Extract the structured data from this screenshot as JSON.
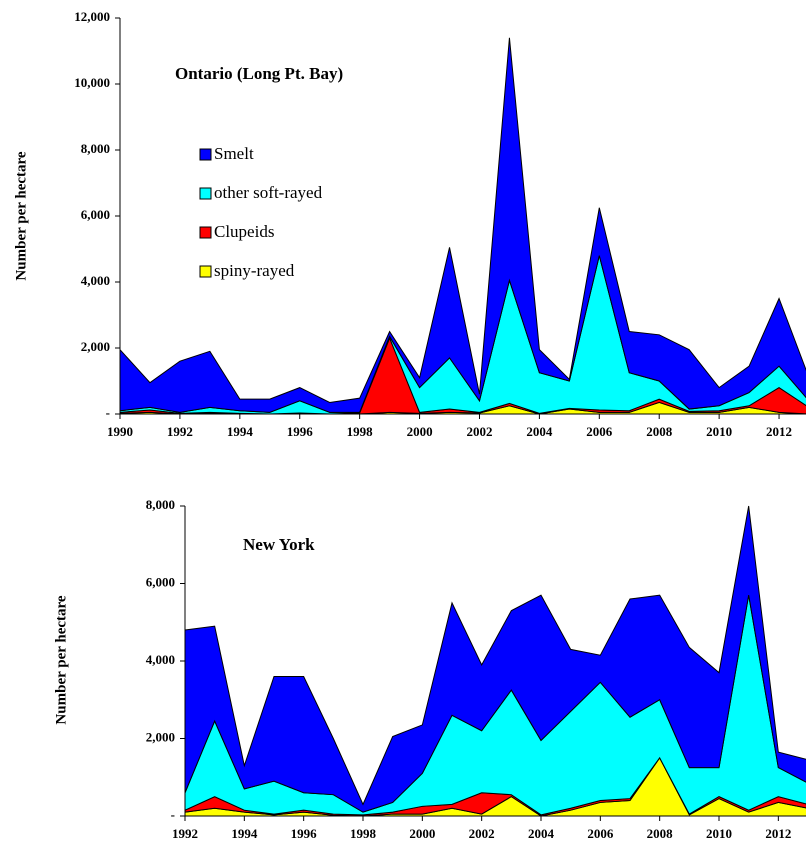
{
  "chart_data": [
    {
      "type": "stacked-area",
      "title": "Ontario (Long Pt. Bay)",
      "y_label": "Number per hectare",
      "x": [
        1990,
        1991,
        1992,
        1993,
        1994,
        1995,
        1996,
        1997,
        1998,
        1999,
        2000,
        2001,
        2002,
        2003,
        2004,
        2005,
        2006,
        2007,
        2008,
        2009,
        2010,
        2011,
        2012,
        2013
      ],
      "series": [
        {
          "name": "Smelt",
          "color": "#0000ff",
          "values": [
            1850,
            750,
            1550,
            1700,
            350,
            400,
            400,
            300,
            430,
            150,
            300,
            3350,
            200,
            7350,
            700,
            50,
            1450,
            1250,
            1400,
            1800,
            550,
            800,
            2050,
            700
          ]
        },
        {
          "name": "other soft-rayed",
          "color": "#00ffff",
          "values": [
            50,
            80,
            30,
            150,
            80,
            50,
            370,
            50,
            20,
            50,
            750,
            1550,
            350,
            3730,
            1230,
            830,
            4680,
            1150,
            550,
            70,
            150,
            400,
            650,
            200
          ]
        },
        {
          "name": "Clupeids",
          "color": "#ff0000",
          "values": [
            30,
            70,
            20,
            30,
            20,
            0,
            10,
            0,
            30,
            2250,
            30,
            100,
            20,
            70,
            20,
            20,
            70,
            50,
            100,
            30,
            50,
            50,
            750,
            200
          ]
        },
        {
          "name": "spiny-rayed",
          "color": "#ffff00",
          "values": [
            20,
            50,
            0,
            20,
            0,
            0,
            20,
            0,
            0,
            50,
            20,
            50,
            30,
            250,
            0,
            150,
            50,
            50,
            350,
            50,
            50,
            200,
            50,
            0
          ]
        }
      ],
      "xlim": [
        1990,
        2013
      ],
      "xticks": [
        1990,
        1992,
        1994,
        1996,
        1998,
        2000,
        2002,
        2004,
        2006,
        2008,
        2010,
        2012
      ],
      "ylim": [
        0,
        12000
      ],
      "yticks": [
        {
          "value": 0,
          "label": "-"
        },
        {
          "value": 2000,
          "label": "2,000"
        },
        {
          "value": 4000,
          "label": "4,000"
        },
        {
          "value": 6000,
          "label": "6,000"
        },
        {
          "value": 8000,
          "label": "8,000"
        },
        {
          "value": 10000,
          "label": "10,000"
        },
        {
          "value": 12000,
          "label": "12,000"
        }
      ],
      "legend": "upper left"
    },
    {
      "type": "stacked-area",
      "title": "New York",
      "y_label": "Number per hectare",
      "x": [
        1992,
        1993,
        1994,
        1995,
        1996,
        1997,
        1998,
        1999,
        2000,
        2001,
        2002,
        2003,
        2004,
        2005,
        2006,
        2007,
        2008,
        2009,
        2010,
        2011,
        2012,
        2013
      ],
      "series": [
        {
          "color": "#0000ff",
          "values": [
            4200,
            2450,
            600,
            2700,
            3000,
            1450,
            200,
            1700,
            1250,
            2900,
            1700,
            2050,
            3750,
            1600,
            700,
            3050,
            2700,
            3100,
            2450,
            2300,
            400,
            600
          ]
        },
        {
          "color": "#00ffff",
          "values": [
            450,
            1950,
            550,
            850,
            450,
            500,
            70,
            250,
            850,
            2300,
            1600,
            2700,
            1920,
            2500,
            3050,
            2100,
            1500,
            1200,
            750,
            5550,
            750,
            550
          ]
        },
        {
          "color": "#ff0000",
          "values": [
            50,
            300,
            50,
            20,
            50,
            30,
            30,
            50,
            200,
            100,
            550,
            50,
            30,
            50,
            50,
            50,
            0,
            20,
            50,
            50,
            150,
            100
          ]
        },
        {
          "color": "#ffff00",
          "values": [
            100,
            200,
            100,
            30,
            100,
            20,
            0,
            50,
            50,
            200,
            50,
            500,
            0,
            150,
            350,
            400,
            1500,
            30,
            450,
            100,
            350,
            200
          ]
        }
      ],
      "xlim": [
        1992,
        2013
      ],
      "xticks": [
        1992,
        1994,
        1996,
        1998,
        2000,
        2002,
        2004,
        2006,
        2008,
        2010,
        2012
      ],
      "ylim": [
        0,
        8000
      ],
      "yticks": [
        {
          "value": 0,
          "label": "-"
        },
        {
          "value": 2000,
          "label": "2,000"
        },
        {
          "value": 4000,
          "label": "4,000"
        },
        {
          "value": 6000,
          "label": "6,000"
        },
        {
          "value": 8000,
          "label": "8,000"
        }
      ]
    }
  ]
}
